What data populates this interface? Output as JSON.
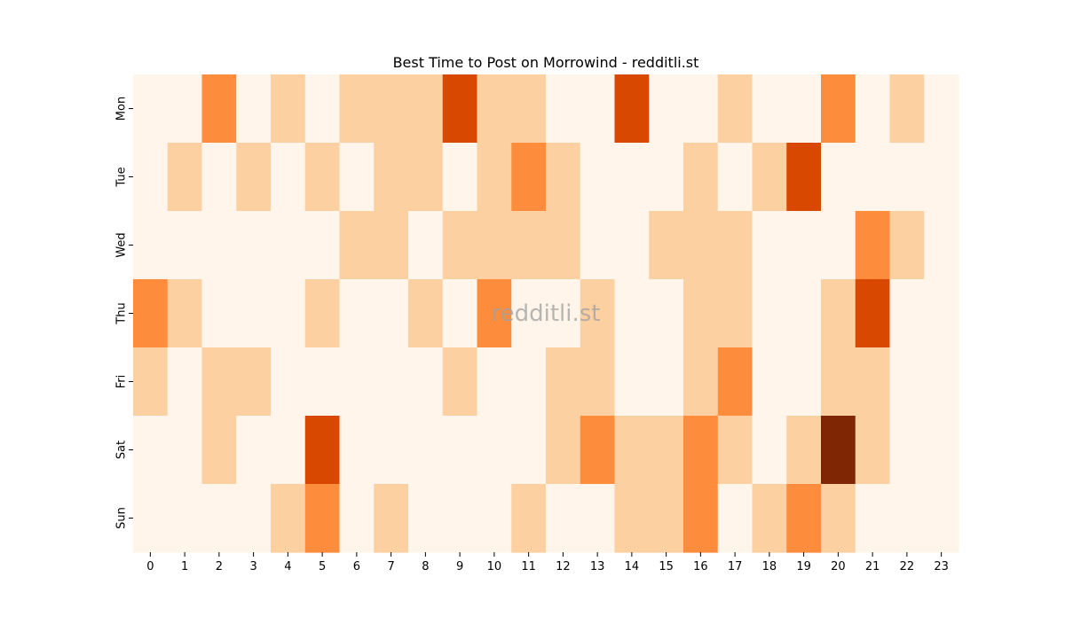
{
  "chart_data": {
    "type": "heatmap",
    "title": "Best Time to Post on Morrowind - redditli.st",
    "watermark": "redditli.st",
    "x_categories": [
      "0",
      "1",
      "2",
      "3",
      "4",
      "5",
      "6",
      "7",
      "8",
      "9",
      "10",
      "11",
      "12",
      "13",
      "14",
      "15",
      "16",
      "17",
      "18",
      "19",
      "20",
      "21",
      "22",
      "23"
    ],
    "y_categories": [
      "Mon",
      "Tue",
      "Wed",
      "Thu",
      "Fri",
      "Sat",
      "Sun"
    ],
    "colorscale": [
      "#fff5eb",
      "#fdd0a2",
      "#fd8d3c",
      "#d94801",
      "#7f2704"
    ],
    "values": [
      [
        0,
        0,
        2,
        0,
        1,
        0,
        1,
        1,
        1,
        3,
        1,
        1,
        0,
        0,
        3,
        0,
        0,
        1,
        0,
        0,
        2,
        0,
        1,
        0
      ],
      [
        0,
        1,
        0,
        1,
        0,
        1,
        0,
        1,
        1,
        0,
        1,
        2,
        1,
        0,
        0,
        0,
        1,
        0,
        1,
        3,
        0,
        0,
        0,
        0
      ],
      [
        0,
        0,
        0,
        0,
        0,
        0,
        1,
        1,
        0,
        1,
        1,
        1,
        1,
        0,
        0,
        1,
        1,
        1,
        0,
        0,
        0,
        2,
        1,
        0
      ],
      [
        2,
        1,
        0,
        0,
        0,
        1,
        0,
        0,
        1,
        0,
        2,
        0,
        0,
        1,
        0,
        0,
        1,
        1,
        0,
        0,
        1,
        3,
        0,
        0
      ],
      [
        1,
        0,
        1,
        1,
        0,
        0,
        0,
        0,
        0,
        1,
        0,
        0,
        1,
        1,
        0,
        0,
        1,
        2,
        0,
        0,
        1,
        1,
        0,
        0
      ],
      [
        0,
        0,
        1,
        0,
        0,
        3,
        0,
        0,
        0,
        0,
        0,
        0,
        1,
        2,
        1,
        1,
        2,
        1,
        0,
        1,
        4,
        1,
        0,
        0
      ],
      [
        0,
        0,
        0,
        0,
        1,
        2,
        0,
        1,
        0,
        0,
        0,
        1,
        0,
        0,
        1,
        1,
        2,
        0,
        1,
        2,
        1,
        0,
        0,
        0
      ]
    ],
    "xlabel": "",
    "ylabel": "",
    "colorbar": false
  }
}
